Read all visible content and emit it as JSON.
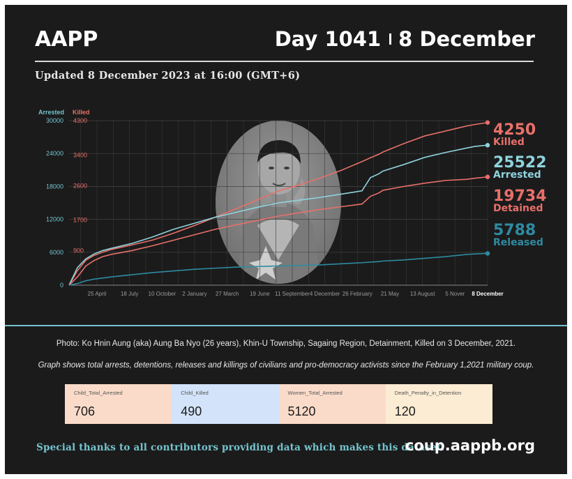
{
  "header": {
    "brand": "AAPP",
    "day": "Day 1041",
    "date": "8 December",
    "updated": "Updated 8 December 2023 at 16:00 (GMT+6)"
  },
  "chart_data": {
    "type": "line",
    "title": "",
    "xlabel": "",
    "y_left": {
      "label": "Arrested",
      "ticks": [
        0,
        6000,
        12000,
        18000,
        24000,
        30000
      ],
      "ylim": [
        0,
        30000
      ],
      "color": "#74c4cf"
    },
    "y_right": {
      "label": "Killed",
      "ticks": [
        900,
        1700,
        2600,
        3400,
        4300
      ],
      "color": "#e8706a"
    },
    "x_ticks": [
      "25 April",
      "18 July",
      "10 October",
      "2 January",
      "27 March",
      "19 June",
      "11 September",
      "4 December",
      "26 February",
      "21 May",
      "13 August",
      "5 Nover",
      "8 December"
    ],
    "grid": true,
    "x": [
      0,
      0.02,
      0.04,
      0.06,
      0.08,
      0.1,
      0.15,
      0.2,
      0.25,
      0.3,
      0.35,
      0.4,
      0.45,
      0.5,
      0.55,
      0.6,
      0.65,
      0.7,
      0.72,
      0.74,
      0.75,
      0.8,
      0.85,
      0.9,
      0.95,
      0.97,
      1.0
    ],
    "series": [
      {
        "name": "Killed",
        "color": "#e8706a",
        "axis": "right",
        "values": [
          0,
          380,
          650,
          780,
          860,
          930,
          1050,
          1180,
          1360,
          1560,
          1780,
          2000,
          2230,
          2460,
          2620,
          2800,
          3000,
          3230,
          3330,
          3420,
          3480,
          3700,
          3900,
          4030,
          4160,
          4200,
          4250
        ]
      },
      {
        "name": "Arrested",
        "color": "#8fd3dd",
        "axis": "left",
        "values": [
          0,
          3200,
          4800,
          5700,
          6300,
          6700,
          7600,
          8800,
          10200,
          11300,
          12400,
          13300,
          14200,
          15000,
          15500,
          16000,
          16600,
          17200,
          19600,
          20300,
          20800,
          22000,
          23300,
          24200,
          25000,
          25300,
          25522
        ]
      },
      {
        "name": "Detained",
        "color": "#e8706a",
        "axis": "left",
        "values": [
          0,
          1500,
          3500,
          4500,
          5200,
          5600,
          6300,
          7200,
          8200,
          9200,
          10200,
          11000,
          11800,
          12600,
          13200,
          13800,
          14300,
          14800,
          16200,
          16800,
          17300,
          18000,
          18600,
          19100,
          19300,
          19500,
          19734
        ]
      },
      {
        "name": "Released",
        "color": "#2e8ba2",
        "axis": "left",
        "values": [
          0,
          300,
          800,
          1100,
          1300,
          1500,
          1900,
          2300,
          2600,
          2900,
          3100,
          3300,
          3400,
          3500,
          3600,
          3700,
          3900,
          4100,
          4200,
          4300,
          4400,
          4600,
          4900,
          5200,
          5600,
          5700,
          5788
        ]
      }
    ],
    "end_labels": [
      {
        "value": "4250",
        "label": "Killed",
        "color": "#e8706a"
      },
      {
        "value": "25522",
        "label": "Arrested",
        "color": "#8fd3dd"
      },
      {
        "value": "19734",
        "label": "Detained",
        "color": "#e8706a"
      },
      {
        "value": "5788",
        "label": "Released",
        "color": "#2e8ba2"
      }
    ]
  },
  "photo_caption": "Photo: Ko Hnin Aung (aka) Aung Ba Nyo (26 years), Khin-U Township, Sagaing Region, Detainment, Killed on 3 December, 2021.",
  "graph_note": "Graph shows total arrests, detentions, releases and killings of civilians and pro-democracy activists since the February 1,2021 military coup.",
  "stats": [
    {
      "label": "Child_Total_Arrested",
      "value": "706",
      "color": "#fadbc9"
    },
    {
      "label": "Child_Killed",
      "value": "490",
      "color": "#d3e3fa"
    },
    {
      "label": "Women_Total_Arrested",
      "value": "5120",
      "color": "#fadbc9"
    },
    {
      "label": "Death_Penalty_in_Detention",
      "value": "120",
      "color": "#fbecd3"
    }
  ],
  "footer": {
    "thanks": "Special thanks to all contributors providing data which makes this dataset.",
    "site": "coup.aappb.org"
  }
}
